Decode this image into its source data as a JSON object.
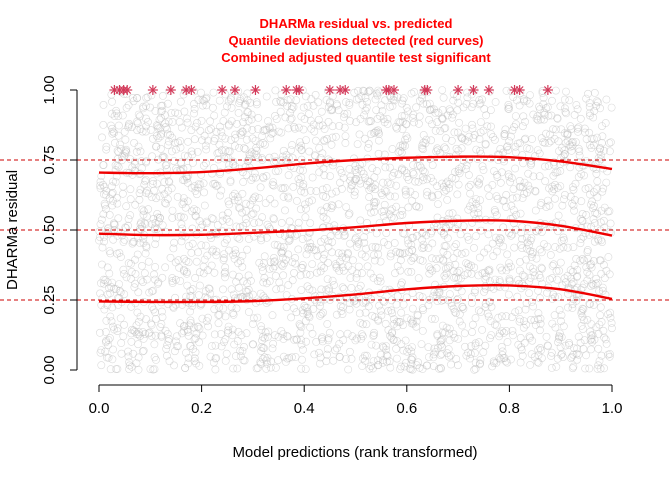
{
  "chart_data": {
    "type": "scatter",
    "title_lines": [
      "DHARMa residual vs. predicted",
      "Quantile deviations detected (red curves)",
      "Combined adjusted quantile test significant"
    ],
    "title_color": "#ff0000",
    "xlabel": "Model predictions (rank transformed)",
    "ylabel": "DHARMa residual",
    "xlim": [
      0,
      1
    ],
    "ylim": [
      0,
      1
    ],
    "x_ticks": [
      0.0,
      0.2,
      0.4,
      0.6,
      0.8,
      1.0
    ],
    "x_tick_labels": [
      "0.0",
      "0.2",
      "0.4",
      "0.6",
      "0.8",
      "1.0"
    ],
    "y_ticks": [
      0.0,
      0.25,
      0.5,
      0.75,
      1.0
    ],
    "y_tick_labels": [
      "0.00",
      "0.25",
      "0.50",
      "0.75",
      "1.00"
    ],
    "reference_lines": [
      0.25,
      0.5,
      0.75
    ],
    "reference_line_color": "#cc0000",
    "curve_color": "#ee0000",
    "point_color": "#bbbbbb",
    "outlier_color": "#d33a5a",
    "scatter_points_note": "approx. 3000 open-circle residuals uniformly spread over x in [0,1], y in [0,1]",
    "quantile_curves": [
      {
        "quantile": 0.25,
        "x": [
          0.0,
          0.1,
          0.2,
          0.3,
          0.4,
          0.5,
          0.6,
          0.7,
          0.8,
          0.9,
          1.0
        ],
        "y": [
          0.245,
          0.243,
          0.243,
          0.246,
          0.256,
          0.27,
          0.288,
          0.3,
          0.302,
          0.288,
          0.254
        ]
      },
      {
        "quantile": 0.5,
        "x": [
          0.0,
          0.1,
          0.2,
          0.3,
          0.4,
          0.5,
          0.6,
          0.7,
          0.8,
          0.9,
          1.0
        ],
        "y": [
          0.487,
          0.482,
          0.483,
          0.49,
          0.498,
          0.51,
          0.525,
          0.533,
          0.533,
          0.515,
          0.48
        ]
      },
      {
        "quantile": 0.75,
        "x": [
          0.0,
          0.1,
          0.2,
          0.3,
          0.4,
          0.5,
          0.6,
          0.7,
          0.8,
          0.9,
          1.0
        ],
        "y": [
          0.705,
          0.703,
          0.707,
          0.72,
          0.737,
          0.75,
          0.758,
          0.762,
          0.76,
          0.745,
          0.718
        ]
      }
    ],
    "outliers": {
      "y": 1.0,
      "x": [
        0.03,
        0.04,
        0.048,
        0.055,
        0.105,
        0.14,
        0.17,
        0.18,
        0.24,
        0.265,
        0.305,
        0.365,
        0.385,
        0.39,
        0.45,
        0.47,
        0.48,
        0.56,
        0.565,
        0.575,
        0.635,
        0.64,
        0.7,
        0.73,
        0.76,
        0.81,
        0.82,
        0.875
      ]
    }
  }
}
